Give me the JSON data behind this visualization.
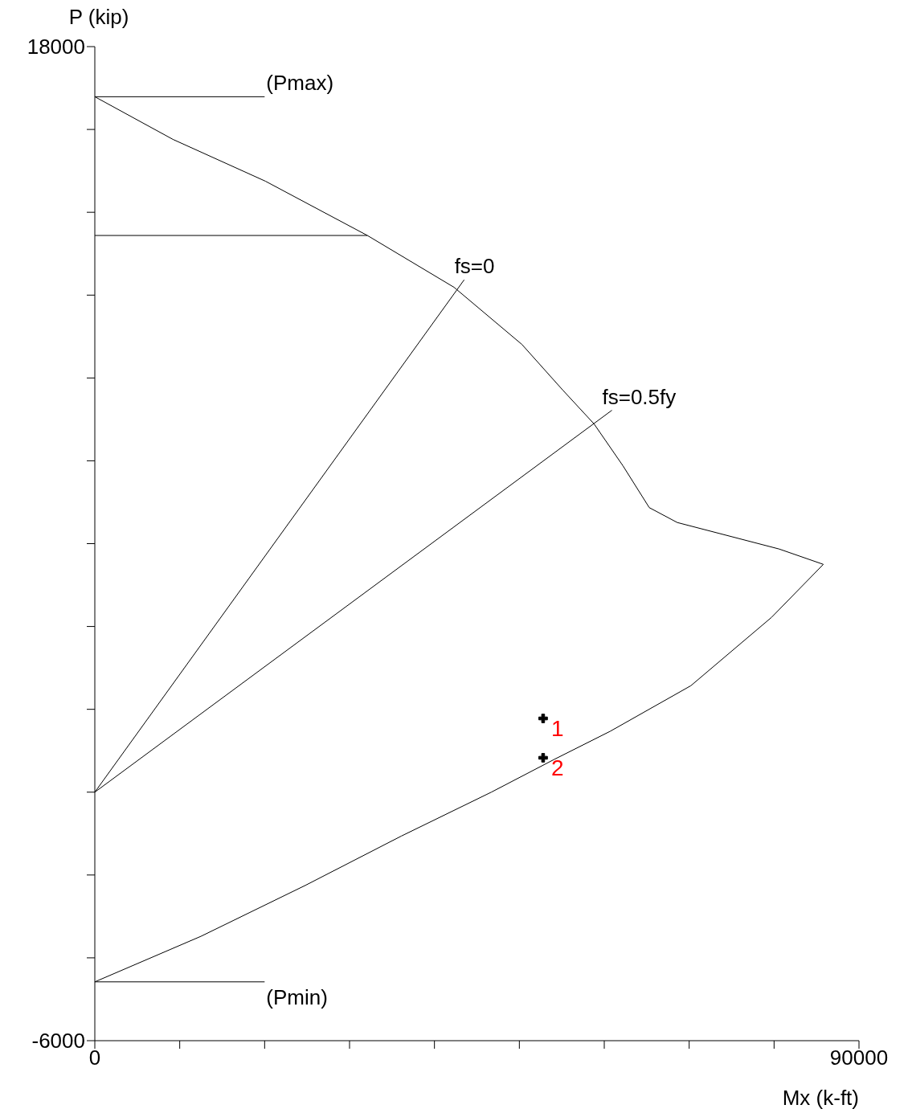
{
  "chart_data": {
    "type": "line",
    "xlabel": "Mx (k-ft)",
    "ylabel": "P (kip)",
    "xlim": [
      0,
      90000
    ],
    "ylim": [
      -6000,
      18000
    ],
    "xticks": [
      0,
      {
        "value": 10000,
        "label": null
      },
      {
        "value": 20000,
        "label": null
      },
      {
        "value": 30000,
        "label": null
      },
      {
        "value": 40000,
        "label": null
      },
      {
        "value": 50000,
        "label": null
      },
      {
        "value": 60000,
        "label": null
      },
      {
        "value": 70000,
        "label": null
      },
      {
        "value": 80000,
        "label": null
      },
      90000
    ],
    "yticks": [
      -6000,
      {
        "value": -4000,
        "label": null
      },
      {
        "value": -2000,
        "label": null
      },
      {
        "value": 0,
        "label": null
      },
      {
        "value": 2000,
        "label": null
      },
      {
        "value": 4000,
        "label": null
      },
      {
        "value": 6000,
        "label": null
      },
      {
        "value": 8000,
        "label": null
      },
      {
        "value": 10000,
        "label": null
      },
      {
        "value": 12000,
        "label": null
      },
      {
        "value": 14000,
        "label": null
      },
      {
        "value": 16000,
        "label": null
      },
      18000
    ],
    "grid": false,
    "line_style": "solid",
    "series": [
      {
        "color": "#000000",
        "x": [
          0,
          9200,
          20100,
          32100,
          42300,
          50300,
          55100,
          58800,
          62200,
          65300,
          68600,
          80600,
          85800,
          79700,
          70200,
          60700,
          54100,
          46700,
          36100,
          24800,
          12500,
          0
        ],
        "values": [
          16790,
          15760,
          14750,
          13440,
          12190,
          10810,
          9710,
          8890,
          7880,
          6870,
          6510,
          5870,
          5500,
          4220,
          2570,
          1470,
          790,
          0,
          -1060,
          -2250,
          -3480,
          -4580
        ]
      },
      {
        "color": "#000000",
        "x": [
          0,
          20000
        ],
        "values": [
          16790,
          16790
        ]
      },
      {
        "color": "#000000",
        "x": [
          0,
          32100
        ],
        "values": [
          13440,
          13440
        ]
      },
      {
        "color": "#000000",
        "x": [
          0,
          20000
        ],
        "values": [
          -4580,
          -4580
        ]
      },
      {
        "color": "#000000",
        "x": [
          0,
          43500
        ],
        "values": [
          0,
          12370
        ]
      },
      {
        "color": "#000000",
        "x": [
          0,
          60900
        ],
        "values": [
          0,
          9220
        ]
      },
      {
        "type": "scatter",
        "name": "1",
        "marker": "cross",
        "color": "#000000",
        "x": [
          52800
        ],
        "values": [
          1780
        ]
      },
      {
        "type": "scatter",
        "name": "2",
        "marker": "cross",
        "color": "#000000",
        "x": [
          52800
        ],
        "values": [
          830
        ]
      }
    ],
    "annotations": [
      {
        "text": "(Pmax)",
        "x": 20000,
        "y": 16790
      },
      {
        "text": "(Pmin)",
        "x": 20000,
        "y": -4580
      },
      {
        "text": "fs=0",
        "x": 43500,
        "y": 12370
      },
      {
        "text": "fs=0.5fy",
        "x": 60900,
        "y": 9220
      }
    ]
  }
}
